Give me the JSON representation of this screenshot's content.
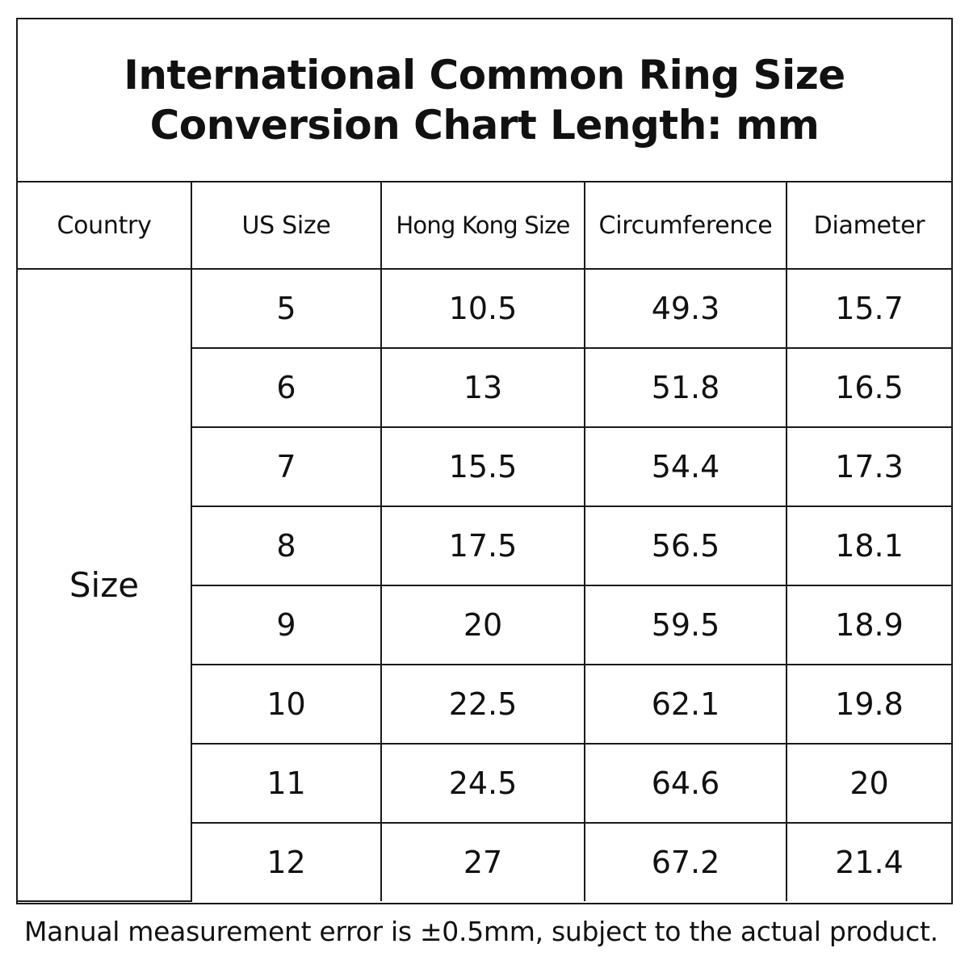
{
  "title": {
    "line1": "International Common Ring Size",
    "line2": "Conversion Chart Length: mm"
  },
  "table": {
    "headers": [
      "Country",
      "US Size",
      "Hong Kong Size",
      "Circumference",
      "Diameter"
    ],
    "row_group_label": "Size",
    "rows": [
      {
        "us": "5",
        "hk": "10.5",
        "circumference": "49.3",
        "diameter": "15.7"
      },
      {
        "us": "6",
        "hk": "13",
        "circumference": "51.8",
        "diameter": "16.5"
      },
      {
        "us": "7",
        "hk": "15.5",
        "circumference": "54.4",
        "diameter": "17.3"
      },
      {
        "us": "8",
        "hk": "17.5",
        "circumference": "56.5",
        "diameter": "18.1"
      },
      {
        "us": "9",
        "hk": "20",
        "circumference": "59.5",
        "diameter": "18.9"
      },
      {
        "us": "10",
        "hk": "22.5",
        "circumference": "62.1",
        "diameter": "19.8"
      },
      {
        "us": "11",
        "hk": "24.5",
        "circumference": "64.6",
        "diameter": "20"
      },
      {
        "us": "12",
        "hk": "27",
        "circumference": "67.2",
        "diameter": "21.4"
      }
    ]
  },
  "footnote": "Manual measurement error is ±0.5mm, subject to the actual product."
}
